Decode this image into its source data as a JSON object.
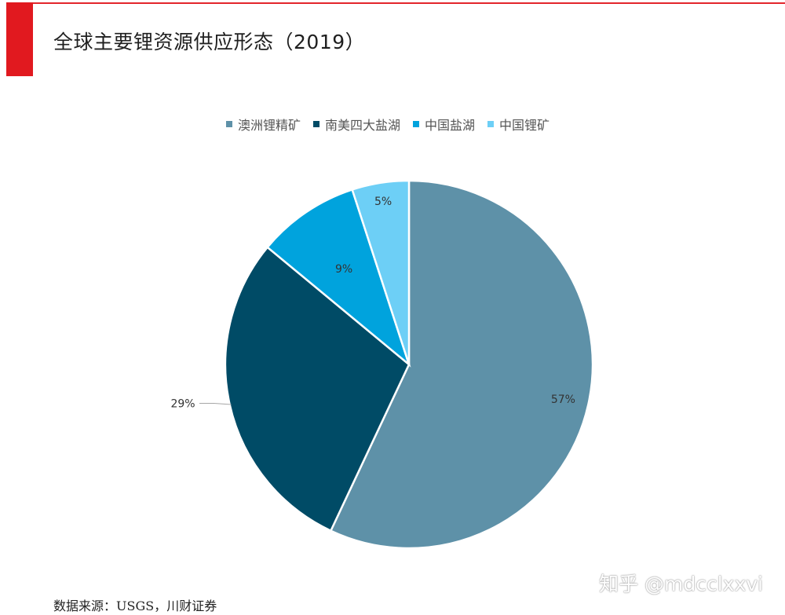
{
  "header": {
    "title": "全球主要锂资源供应形态（2019）"
  },
  "chart_data": {
    "type": "pie",
    "categories": [
      "澳洲锂精矿",
      "南美四大盐湖",
      "中国盐湖",
      "中国锂矿"
    ],
    "values": [
      57,
      29,
      9,
      5
    ],
    "labels": [
      "57%",
      "29%",
      "9%",
      "5%"
    ],
    "colors": [
      "#5e91a8",
      "#004b66",
      "#00a3dd",
      "#6dcff6"
    ],
    "legend_position": "top"
  },
  "footer": {
    "source": "数据来源：USGS，川财证券",
    "watermark": "知乎 @mdcclxxvi"
  },
  "colors": {
    "accent_red": "#e1191f"
  }
}
